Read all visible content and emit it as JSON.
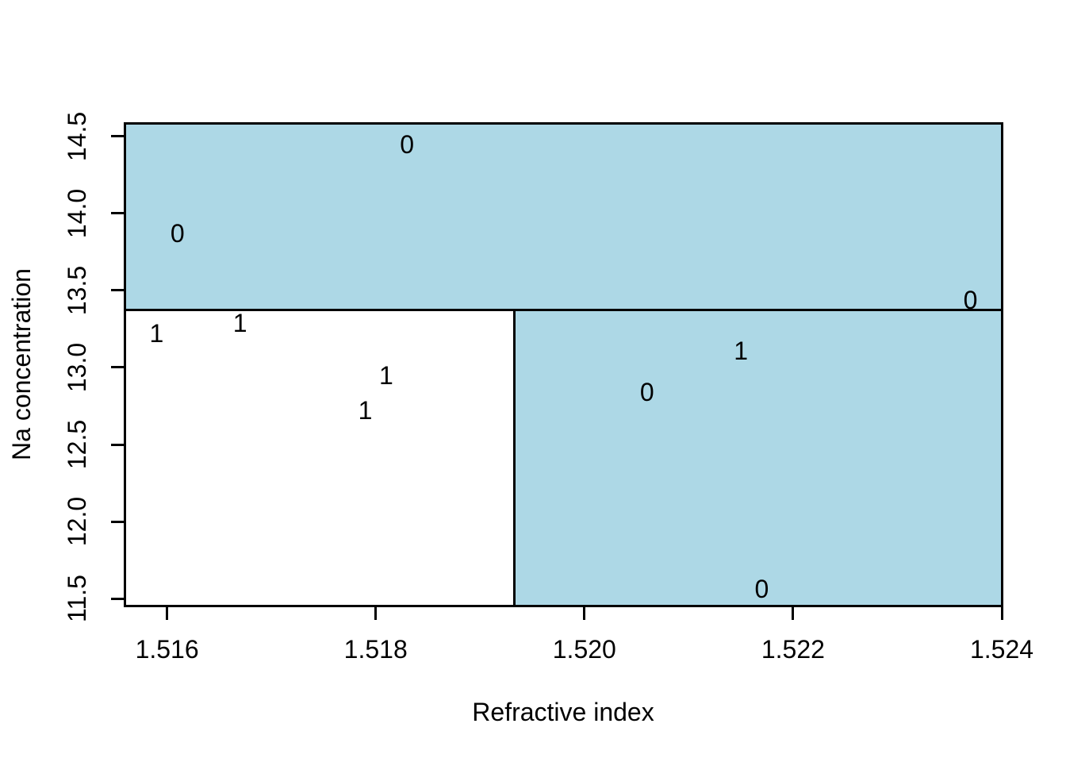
{
  "figure": {
    "background": "#FFFFFF",
    "plot_background": "#FFFFFF"
  },
  "chart_data": {
    "type": "scatter",
    "title": "",
    "xlabel": "Refractive index",
    "ylabel": "Na concentration",
    "xlim": [
      1.5156,
      1.524
    ],
    "ylim": [
      11.454,
      14.582
    ],
    "grid": false,
    "legend": false,
    "region_fill_color": "#ADD8E6",
    "line_color": "#000000",
    "text_color": "#000000",
    "x_ticks": [
      {
        "value": 1.516,
        "label": "1.516"
      },
      {
        "value": 1.518,
        "label": "1.518"
      },
      {
        "value": 1.52,
        "label": "1.520"
      },
      {
        "value": 1.522,
        "label": "1.522"
      },
      {
        "value": 1.524,
        "label": "1.524"
      }
    ],
    "y_ticks": [
      {
        "value": 11.5,
        "label": "11.5"
      },
      {
        "value": 12.0,
        "label": "12.0"
      },
      {
        "value": 12.5,
        "label": "12.5"
      },
      {
        "value": 13.0,
        "label": "13.0"
      },
      {
        "value": 13.5,
        "label": "13.5"
      },
      {
        "value": 14.0,
        "label": "14.0"
      },
      {
        "value": 14.5,
        "label": "14.5"
      }
    ],
    "partition_boundaries": {
      "horizontal_split_na_concentration": 13.376,
      "vertical_split_refractive_index": 1.51933
    },
    "regions": [
      {
        "name": "region-top",
        "x0": 1.5156,
        "x1": 1.524,
        "y0": 13.376,
        "y1": 14.582,
        "filled": true
      },
      {
        "name": "region-bottom-right",
        "x0": 1.51933,
        "x1": 1.524,
        "y0": 11.454,
        "y1": 13.376,
        "filled": true
      },
      {
        "name": "region-bottom-left",
        "x0": 1.5156,
        "x1": 1.51933,
        "y0": 11.454,
        "y1": 13.376,
        "filled": false
      }
    ],
    "partition_lines": [
      {
        "orientation": "horizontal",
        "at": 13.376,
        "from": 1.5156,
        "to": 1.524
      },
      {
        "orientation": "vertical",
        "at": 1.51933,
        "from": 11.454,
        "to": 13.376
      }
    ],
    "points": [
      {
        "x": 1.5183,
        "y": 14.45,
        "label": "0"
      },
      {
        "x": 1.5161,
        "y": 13.87,
        "label": "0"
      },
      {
        "x": 1.5237,
        "y": 13.44,
        "label": "0"
      },
      {
        "x": 1.5159,
        "y": 13.22,
        "label": "1"
      },
      {
        "x": 1.5167,
        "y": 13.29,
        "label": "1"
      },
      {
        "x": 1.5181,
        "y": 12.95,
        "label": "1"
      },
      {
        "x": 1.5179,
        "y": 12.72,
        "label": "1"
      },
      {
        "x": 1.5215,
        "y": 13.11,
        "label": "1"
      },
      {
        "x": 1.5206,
        "y": 12.84,
        "label": "0"
      },
      {
        "x": 1.5217,
        "y": 11.56,
        "label": "0"
      }
    ]
  }
}
